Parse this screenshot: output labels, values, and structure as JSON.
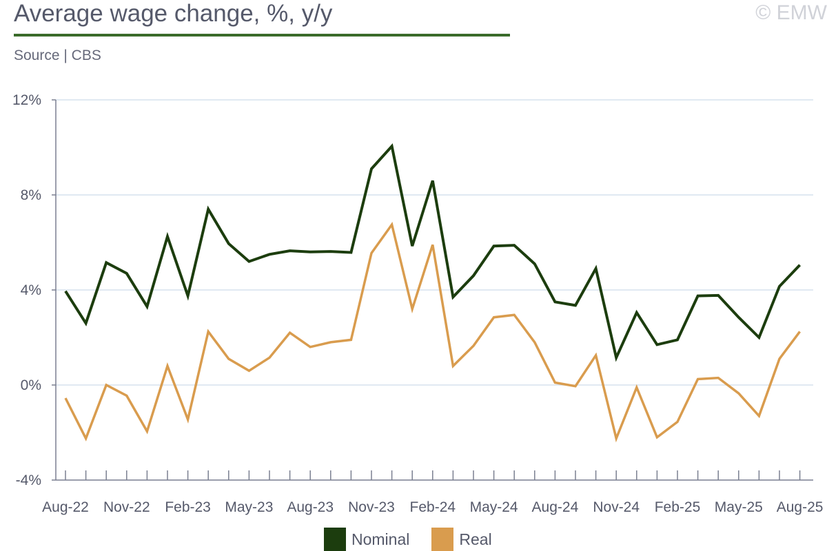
{
  "header": {
    "title": "Average wage change, %, y/y",
    "source": "Source | CBS",
    "copyright": "© EMW"
  },
  "chart_data": {
    "type": "line",
    "title": "Average wage change, %, y/y",
    "xlabel": "",
    "ylabel": "",
    "ylim": [
      -4,
      12
    ],
    "yticks": [
      -4,
      0,
      4,
      8,
      12
    ],
    "ytick_labels": [
      "-4%",
      "0%",
      "4%",
      "8%",
      "12%"
    ],
    "grid": true,
    "legend_position": "bottom",
    "x": [
      "Aug-22",
      "Sep-22",
      "Oct-22",
      "Nov-22",
      "Dec-22",
      "Jan-23",
      "Feb-23",
      "Mar-23",
      "Apr-23",
      "May-23",
      "Jun-23",
      "Jul-23",
      "Aug-23",
      "Sep-23",
      "Oct-23",
      "Nov-23",
      "Dec-23",
      "Jan-24",
      "Feb-24",
      "Mar-24",
      "Apr-24",
      "May-24",
      "Jun-24",
      "Jul-24",
      "Aug-24",
      "Sep-24",
      "Oct-24",
      "Nov-24",
      "Dec-24",
      "Jan-25",
      "Feb-25",
      "Mar-25",
      "Apr-25",
      "May-25",
      "Jun-25",
      "Jul-25",
      "Aug-25"
    ],
    "x_tick_labels": [
      "Aug-22",
      "Nov-22",
      "Feb-23",
      "May-23",
      "Aug-23",
      "Nov-23",
      "Feb-24",
      "May-24",
      "Aug-24",
      "Nov-24",
      "Feb-25",
      "May-25",
      "Aug-25"
    ],
    "series": [
      {
        "name": "Nominal",
        "color": "#1c3d0e",
        "values": [
          3.95,
          2.6,
          5.15,
          4.7,
          3.3,
          6.25,
          3.75,
          7.4,
          5.95,
          5.2,
          5.5,
          5.65,
          5.6,
          5.62,
          5.58,
          9.1,
          10.05,
          5.85,
          8.6,
          3.7,
          4.6,
          5.85,
          5.88,
          5.1,
          3.5,
          3.35,
          4.9,
          1.15,
          3.05,
          1.7,
          1.9,
          3.75,
          3.77,
          2.85,
          2.0,
          4.15,
          5.05
        ]
      },
      {
        "name": "Real",
        "color": "#d99c4e",
        "values": [
          -0.55,
          -2.25,
          0.0,
          -0.45,
          -1.95,
          0.8,
          -1.45,
          2.25,
          1.1,
          0.6,
          1.15,
          2.2,
          1.6,
          1.8,
          1.9,
          5.55,
          6.75,
          3.2,
          5.9,
          0.8,
          1.65,
          2.85,
          2.95,
          1.8,
          0.1,
          -0.05,
          1.25,
          -2.25,
          -0.1,
          -2.2,
          -1.55,
          0.25,
          0.3,
          -0.35,
          -1.3,
          1.1,
          2.25
        ]
      }
    ]
  }
}
